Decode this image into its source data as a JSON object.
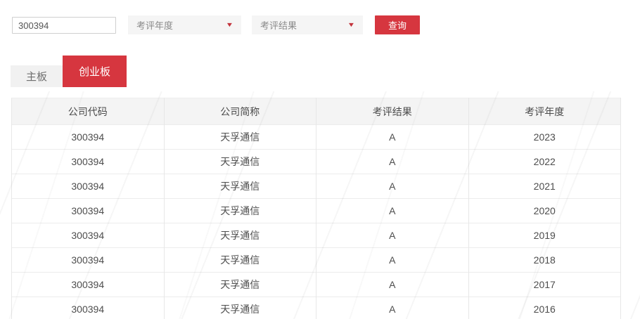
{
  "toolbar": {
    "code_input": {
      "value": "300394",
      "placeholder": ""
    },
    "year_dropdown": {
      "label": "考评年度"
    },
    "result_dropdown": {
      "label": "考评结果"
    },
    "query_button_label": "查询"
  },
  "tabs": {
    "main_board_label": "主板",
    "chinext_label": "创业板",
    "active_tab": "创业板"
  },
  "table": {
    "headers": [
      "公司代码",
      "公司简称",
      "考评结果",
      "考评年度"
    ],
    "rows": [
      [
        "300394",
        "天孚通信",
        "A",
        "2023"
      ],
      [
        "300394",
        "天孚通信",
        "A",
        "2022"
      ],
      [
        "300394",
        "天孚通信",
        "A",
        "2021"
      ],
      [
        "300394",
        "天孚通信",
        "A",
        "2020"
      ],
      [
        "300394",
        "天孚通信",
        "A",
        "2019"
      ],
      [
        "300394",
        "天孚通信",
        "A",
        "2018"
      ],
      [
        "300394",
        "天孚通信",
        "A",
        "2017"
      ],
      [
        "300394",
        "天孚通信",
        "A",
        "2016"
      ]
    ]
  },
  "icons": {
    "dropdown_caret": "▼"
  },
  "colors": {
    "accent_red": "#d6363f",
    "tab_inactive_bg": "#f1f1f1",
    "table_header_bg": "#f4f4f4",
    "border": "#e7e7e7"
  }
}
